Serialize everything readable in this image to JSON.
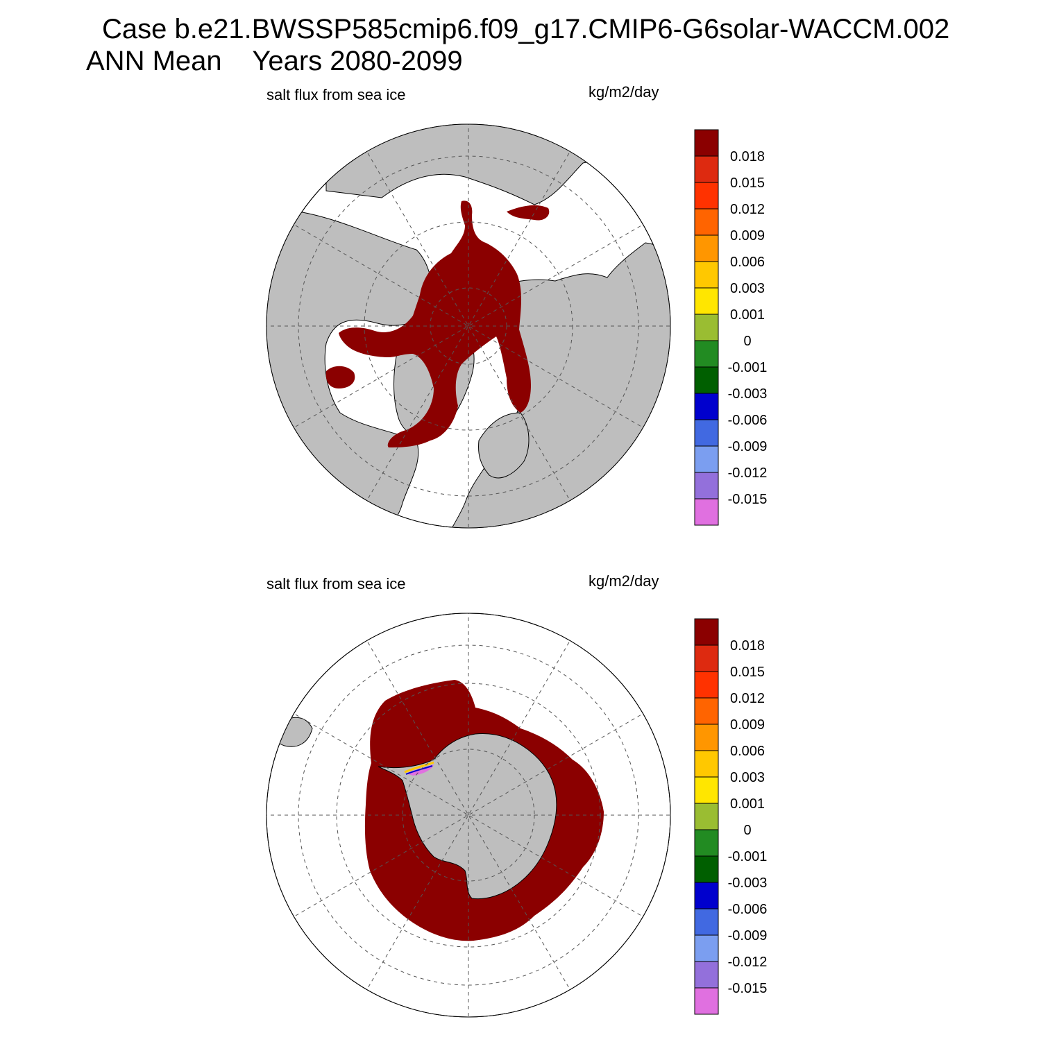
{
  "title": {
    "line1": "Case b.e21.BWSSP585cmip6.f09_g17.CMIP6-G6solar-WACCM.002",
    "line2": "ANN Mean    Years 2080-2099"
  },
  "panels": [
    {
      "hemisphere": "north",
      "variable_label": "salt flux from sea ice",
      "units_label": "kg/m2/day",
      "sea_ice_extent_description": "Arctic Ocean basin, Canadian Archipelago, Baffin Bay, Hudson Bay, Greenland east coast, Barents/Kara/Laptev margins, Sea of Okhotsk"
    },
    {
      "hemisphere": "south",
      "variable_label": "salt flux from sea ice",
      "units_label": "kg/m2/day",
      "sea_ice_extent_description": "Ring around Antarctica, widest in Weddell and Ross seas; small negative-flux patch near Weddell Sea coast"
    }
  ],
  "colorbar": {
    "labels": [
      "0.018",
      "0.015",
      "0.012",
      "0.009",
      "0.006",
      "0.003",
      "0.001",
      "0",
      "-0.001",
      "-0.003",
      "-0.006",
      "-0.009",
      "-0.012",
      "-0.015"
    ],
    "colors": [
      "#8b0000",
      "#dd2a10",
      "#ff3200",
      "#ff6400",
      "#ff9600",
      "#ffc800",
      "#ffe600",
      "#9abd32",
      "#228b22",
      "#005f00",
      "#0000cd",
      "#4169e1",
      "#7b9ef0",
      "#9370db",
      "#e070e0"
    ]
  },
  "map_colors": {
    "land": "#bebebe",
    "ocean": "#ffffff",
    "sea_ice_flux": "#8b0000",
    "grid": "#555555"
  },
  "chart_data": {
    "type": "heatmap",
    "projection": "polar stereographic",
    "colorbar_levels": [
      -0.015,
      -0.012,
      -0.009,
      -0.006,
      -0.003,
      -0.001,
      0,
      0.001,
      0.003,
      0.006,
      0.009,
      0.012,
      0.015,
      0.018
    ],
    "dominant_value_range": ">0.018"
  }
}
